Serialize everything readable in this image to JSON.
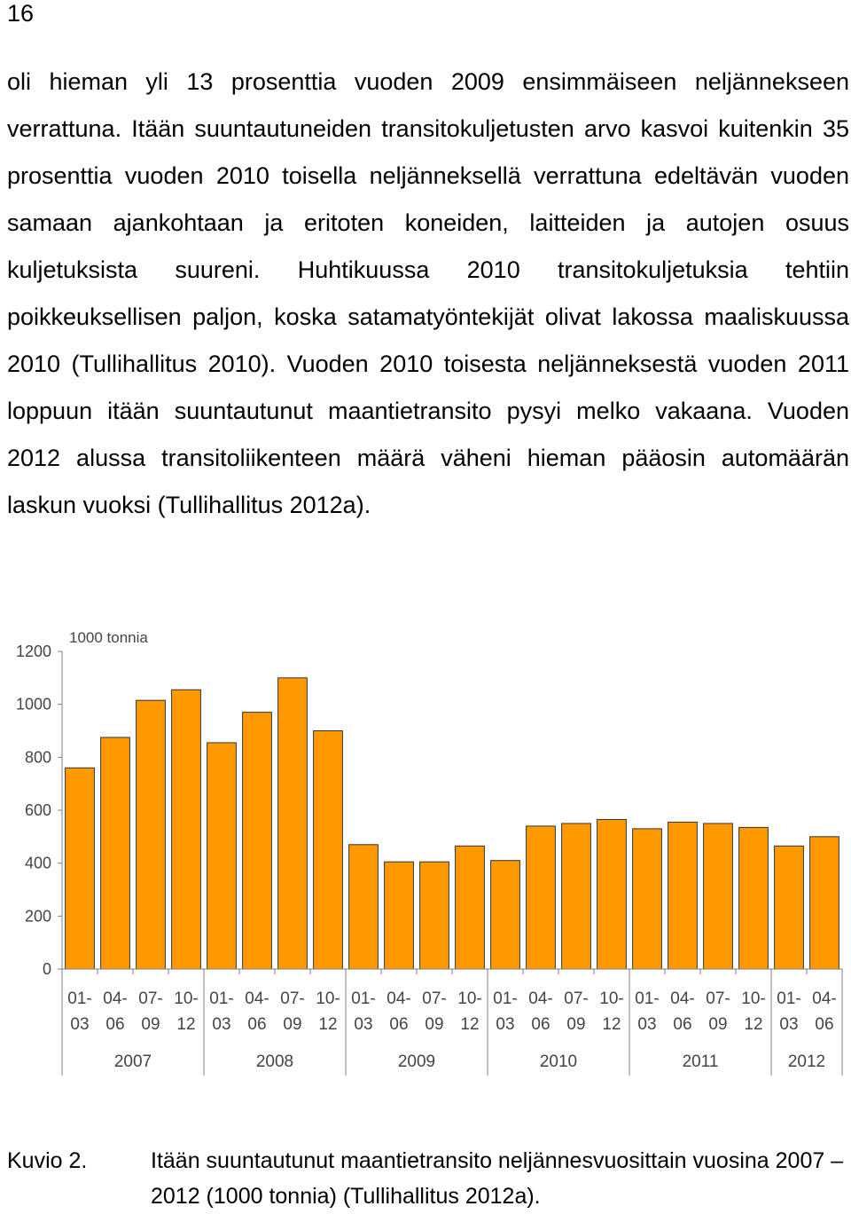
{
  "page": {
    "number": "16",
    "paragraph": "oli hieman yli 13 prosenttia vuoden 2009 ensimmäiseen neljännekseen verrattuna. Itään suuntautuneiden transitokuljetusten arvo kasvoi kuitenkin 35 prosenttia vuoden 2010 toisella neljänneksellä verrattuna edeltävän vuoden samaan ajankohtaan ja eritoten koneiden, laitteiden ja autojen osuus kuljetuksista suureni. Huhtikuussa 2010 transitokuljetuksia tehtiin poikkeuksellisen paljon, koska satamatyöntekijät olivat lakossa maaliskuussa 2010 (Tullihallitus 2010). Vuoden 2010 toisesta neljänneksestä vuoden 2011 loppuun itään suuntautunut maantietransito pysyi melko vakaana. Vuoden 2012 alussa transitoliikenteen määrä väheni hieman pääosin automäärän laskun vuoksi (Tullihallitus 2012a)."
  },
  "caption": {
    "label": "Kuvio 2.",
    "text": "Itään suuntautunut maantietransito neljännesvuosittain vuosina 2007 – 2012 (1000 tonnia) (Tullihallitus 2012a)."
  },
  "chart_data": {
    "type": "bar",
    "unit_label": "1000 tonnia",
    "ylim": [
      0,
      1200
    ],
    "yticks": [
      "0",
      "200",
      "400",
      "600",
      "800",
      "1000",
      "1200"
    ],
    "grid": false,
    "bar_color": "#FF9900",
    "categories": [
      {
        "top": "01-",
        "bottom": "03"
      },
      {
        "top": "04-",
        "bottom": "06"
      },
      {
        "top": "07-",
        "bottom": "09"
      },
      {
        "top": "10-",
        "bottom": "12"
      },
      {
        "top": "01-",
        "bottom": "03"
      },
      {
        "top": "04-",
        "bottom": "06"
      },
      {
        "top": "07-",
        "bottom": "09"
      },
      {
        "top": "10-",
        "bottom": "12"
      },
      {
        "top": "01-",
        "bottom": "03"
      },
      {
        "top": "04-",
        "bottom": "06"
      },
      {
        "top": "07-",
        "bottom": "09"
      },
      {
        "top": "10-",
        "bottom": "12"
      },
      {
        "top": "01-",
        "bottom": "03"
      },
      {
        "top": "04-",
        "bottom": "06"
      },
      {
        "top": "07-",
        "bottom": "09"
      },
      {
        "top": "10-",
        "bottom": "12"
      },
      {
        "top": "01-",
        "bottom": "03"
      },
      {
        "top": "04-",
        "bottom": "06"
      },
      {
        "top": "07-",
        "bottom": "09"
      },
      {
        "top": "10-",
        "bottom": "12"
      },
      {
        "top": "01-",
        "bottom": "03"
      },
      {
        "top": "04-",
        "bottom": "06"
      }
    ],
    "values": [
      760,
      875,
      1015,
      1055,
      855,
      970,
      1100,
      900,
      470,
      405,
      405,
      465,
      410,
      540,
      550,
      565,
      530,
      555,
      550,
      535,
      465,
      500
    ],
    "years": [
      {
        "label": "2007",
        "quarters": 4
      },
      {
        "label": "2008",
        "quarters": 4
      },
      {
        "label": "2009",
        "quarters": 4
      },
      {
        "label": "2010",
        "quarters": 4
      },
      {
        "label": "2011",
        "quarters": 4
      },
      {
        "label": "2012",
        "quarters": 2
      }
    ]
  }
}
